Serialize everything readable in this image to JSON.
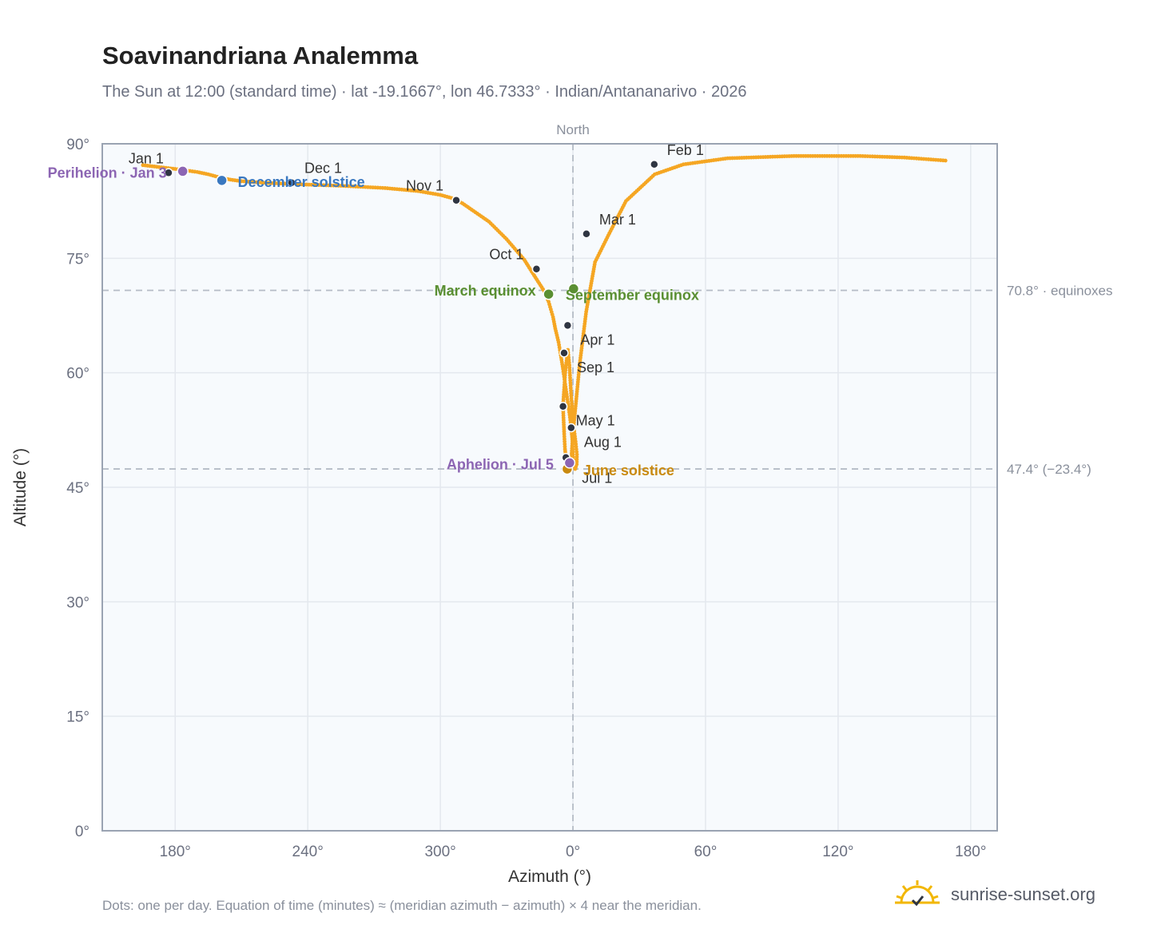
{
  "title": "Soavinandriana Analemma",
  "subtitle": "The Sun at 12:00 (standard time) · lat -19.1667°, lon 46.7333° · Indian/Antananarivo · 2026",
  "footnote": "Dots: one per day. Equation of time (minutes) ≈ (meridian azimuth − azimuth) × 4 near the meridian.",
  "brand": {
    "name": "sunrise-sunset.org",
    "logo_icon": "sun-logo-icon"
  },
  "colors": {
    "curve": "#f5a623",
    "plot_bg": "#f7fafd",
    "grid": "#e4e8ee",
    "frame": "#9aa3b2",
    "month_dot": "#2f3542",
    "equinox": "#5a8f32",
    "solstice_dec": "#3a78c0",
    "solstice_jun": "#c98a10",
    "apsis": "#8c65b3",
    "axis_text": "#6b7080",
    "ref_line": "#b5bcc6"
  },
  "chart_data": {
    "type": "scatter",
    "xlabel": "Azimuth (°)",
    "ylabel": "Altitude (°)",
    "x_ticks": [
      "180°",
      "240°",
      "300°",
      "0°",
      "60°",
      "120°",
      "180°"
    ],
    "y_ticks": [
      "0°",
      "15°",
      "30°",
      "45°",
      "60°",
      "75°",
      "90°"
    ],
    "ylim": [
      0,
      90
    ],
    "xlim_continuous": [
      -213,
      192
    ],
    "meridian_label": "North",
    "grid": true,
    "reference_lines": [
      {
        "altitude": 70.8,
        "label": "70.8° · equinoxes"
      },
      {
        "altitude": 47.4,
        "label": "47.4° (−23.4°)"
      }
    ],
    "series": [
      {
        "x": [
          -194.6,
          -180.0,
          -170.0,
          -165.0,
          -160.0,
          -155.0,
          -150.0,
          -140.0,
          -125.0,
          -105.0,
          -85.0,
          -70.0,
          -60.0,
          -55.0,
          -50.0,
          -45.0,
          -38.0,
          -30.0,
          -22.0,
          -17.0,
          -13.0,
          -11.0,
          -10.0,
          -9.0,
          -8.0,
          -6.5,
          -5.5,
          -4.5,
          -3.5,
          -2.5,
          -1.5,
          -0.8,
          -0.2,
          0.0,
          0.4,
          1.0,
          1.7,
          1.8,
          1.2,
          0.3,
          -0.3,
          -0.8,
          -1.2,
          -1.6,
          -2.3,
          -2.5,
          -3.5,
          -4.5,
          -4.0,
          -3.6,
          -3.2,
          -2.6,
          -2.2,
          -1.5,
          -0.8,
          0.0,
          1.0,
          3.0,
          6.0,
          10.0,
          16.0,
          24.0,
          37.0,
          50.0,
          70.0,
          100.0,
          130.0,
          150.0,
          168.6
        ],
        "y": [
          87.2,
          86.7,
          86.3,
          86.0,
          85.6,
          85.3,
          85.1,
          84.9,
          84.7,
          84.5,
          84.2,
          83.8,
          83.3,
          82.9,
          82.2,
          81.2,
          79.8,
          77.5,
          74.8,
          72.5,
          70.7,
          69.3,
          68.3,
          67.3,
          65.8,
          64.0,
          62.3,
          60.5,
          58.5,
          56.5,
          54.5,
          52.8,
          51.0,
          49.3,
          48.0,
          47.4,
          48.0,
          49.3,
          51.0,
          53.0,
          55.0,
          57.0,
          59.0,
          61.0,
          63.0,
          62.6,
          60.0,
          55.6,
          52.3,
          50.0,
          48.9,
          48.1,
          47.6,
          47.4,
          48.5,
          52.0,
          55.0,
          61.0,
          68.0,
          74.5,
          78.0,
          82.5,
          86.0,
          87.3,
          88.1,
          88.4,
          88.4,
          88.2,
          87.8
        ]
      }
    ],
    "month_markers": [
      {
        "label": "Jan 1",
        "azimuth": -183.0,
        "altitude": 86.2
      },
      {
        "label": "Feb 1",
        "azimuth": 36.8,
        "altitude": 87.3
      },
      {
        "label": "Mar 1",
        "azimuth": 6.1,
        "altitude": 78.2
      },
      {
        "label": "Apr 1",
        "azimuth": -2.4,
        "altitude": 66.2
      },
      {
        "label": "May 1",
        "azimuth": -4.5,
        "altitude": 55.6
      },
      {
        "label": "Jul 1",
        "azimuth": -3.2,
        "altitude": 48.9
      },
      {
        "label": "Aug 1",
        "azimuth": -0.8,
        "altitude": 52.8
      },
      {
        "label": "Sep 1",
        "azimuth": -4.0,
        "altitude": 62.6
      },
      {
        "label": "Oct 1",
        "azimuth": -16.5,
        "altitude": 73.6
      },
      {
        "label": "Nov 1",
        "azimuth": -52.8,
        "altitude": 82.6
      },
      {
        "label": "Dec 1",
        "azimuth": -127.3,
        "altitude": 84.9
      }
    ],
    "events": [
      {
        "label": "Perihelion · Jan 3",
        "azimuth": -176.6,
        "altitude": 86.4,
        "color_key": "apsis"
      },
      {
        "label": "December solstice",
        "azimuth": -158.9,
        "altitude": 85.2,
        "color_key": "solstice_dec"
      },
      {
        "label": "March equinox",
        "azimuth": -11.0,
        "altitude": 70.3,
        "color_key": "equinox"
      },
      {
        "label": "September equinox",
        "azimuth": 0.3,
        "altitude": 71.0,
        "color_key": "equinox"
      },
      {
        "label": "June solstice",
        "azimuth": -2.6,
        "altitude": 47.4,
        "color_key": "solstice_jun"
      },
      {
        "label": "Aphelion · Jul 5",
        "azimuth": -1.5,
        "altitude": 48.2,
        "color_key": "apsis"
      }
    ]
  }
}
